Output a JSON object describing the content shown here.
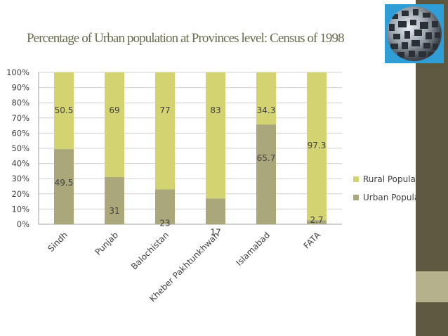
{
  "slide": {
    "title": "Percentage of Urban population at Provinces level: Census of 1998",
    "accent_colors": {
      "side_bar": "#5f5840",
      "side_block": "#b4b18c",
      "title_text": "#6b6b50"
    },
    "logo_icon": "globe-icon"
  },
  "chart_data": {
    "type": "bar",
    "stacked": true,
    "categories": [
      "Sindh",
      "Punjab",
      "Balochistan",
      "Kheber Pakhtunkhwah",
      "Islamabad",
      "FATA"
    ],
    "series": [
      {
        "name": "Urban Population",
        "values": [
          49.5,
          31,
          23,
          17,
          65.7,
          2.7
        ],
        "color": "#aaa77a"
      },
      {
        "name": "Rural Population",
        "values": [
          50.5,
          69,
          77,
          83,
          34.3,
          97.3
        ],
        "color": "#d4d372"
      }
    ],
    "data_labels": {
      "Urban Population": [
        "49.5",
        "31",
        "23",
        "17",
        "65.7",
        "2.7"
      ],
      "Rural Population": [
        "50.5",
        "69",
        "77",
        "83",
        "34.3",
        "97.3"
      ]
    },
    "y_ticks": [
      "0%",
      "10%",
      "20%",
      "30%",
      "40%",
      "50%",
      "60%",
      "70%",
      "80%",
      "90%",
      "100%"
    ],
    "ylim": [
      0,
      100
    ],
    "grid": true,
    "legend": {
      "placement": "right",
      "entries": [
        "Rural Population",
        "Urban Population"
      ]
    }
  }
}
